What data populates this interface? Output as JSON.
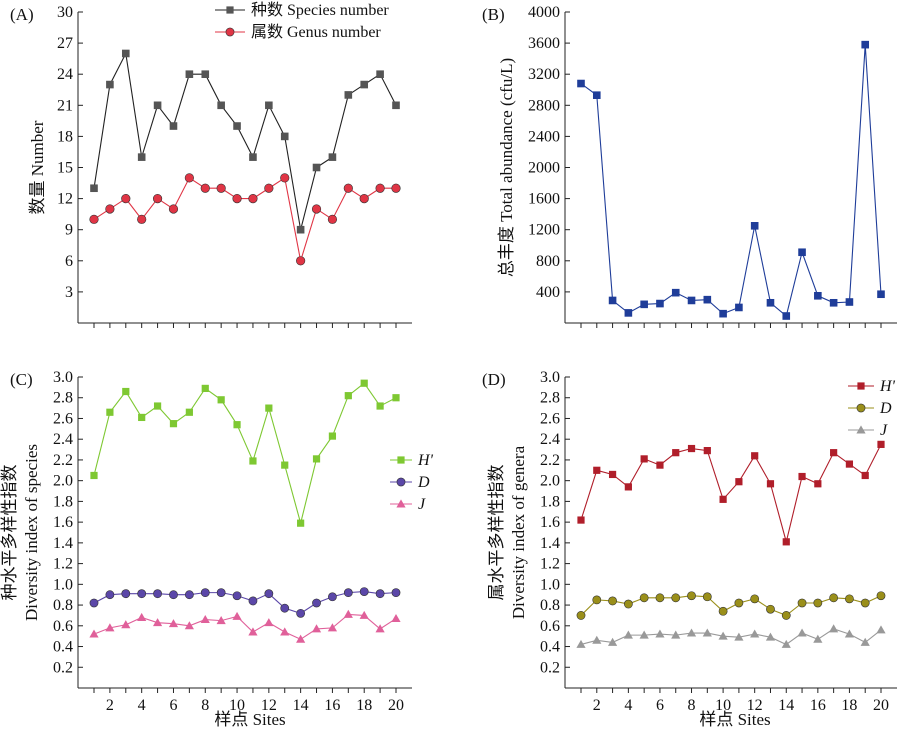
{
  "figure": {
    "x_axis_label": "样点 Sites"
  },
  "chart_data": [
    {
      "type": "line",
      "panel": "(A)",
      "ylabel": "数量 Number",
      "ylim": [
        0,
        30
      ],
      "yticks": [
        3,
        6,
        9,
        12,
        15,
        18,
        21,
        24,
        27,
        30
      ],
      "x": [
        1,
        2,
        3,
        4,
        5,
        6,
        7,
        8,
        9,
        10,
        11,
        12,
        13,
        14,
        15,
        16,
        17,
        18,
        19,
        20
      ],
      "xticks": [],
      "legend_position": "top-right",
      "series": [
        {
          "name": "种数 Species number",
          "color": "#555555",
          "line_color": "#222222",
          "marker": "square",
          "values": [
            13,
            23,
            26,
            16,
            21,
            19,
            24,
            24,
            21,
            19,
            16,
            21,
            18,
            9,
            15,
            16,
            22,
            23,
            24,
            21
          ]
        },
        {
          "name": "属数 Genus number",
          "color": "#e03545",
          "line_color": "#e03545",
          "marker": "circle",
          "values": [
            10,
            11,
            12,
            10,
            12,
            11,
            14,
            13,
            13,
            12,
            12,
            13,
            14,
            6,
            11,
            10,
            13,
            12,
            13,
            13
          ]
        }
      ]
    },
    {
      "type": "line",
      "panel": "(B)",
      "ylabel": "总丰度 Total abundance (cfu/L)",
      "ylim": [
        0,
        4000
      ],
      "yticks": [
        400,
        800,
        1200,
        1600,
        2000,
        2400,
        2800,
        3200,
        3600,
        4000
      ],
      "x": [
        1,
        2,
        3,
        4,
        5,
        6,
        7,
        8,
        9,
        10,
        11,
        12,
        13,
        14,
        15,
        16,
        17,
        18,
        19,
        20
      ],
      "xticks": [],
      "legend_position": "none",
      "series": [
        {
          "color": "#1f3d99",
          "line_color": "#1f3d99",
          "marker": "square",
          "values": [
            3080,
            2930,
            290,
            130,
            240,
            250,
            390,
            290,
            300,
            120,
            200,
            1250,
            260,
            90,
            910,
            350,
            260,
            270,
            3580,
            370
          ]
        }
      ]
    },
    {
      "type": "line",
      "panel": "(C)",
      "ylabel_cn": "种水平多样性指数",
      "ylabel_en": "Diversity index of species",
      "ylim": [
        0,
        3.0
      ],
      "yticks": [
        "0.2",
        "0.4",
        "0.6",
        "0.8",
        "1.0",
        "1.2",
        "1.4",
        "1.6",
        "1.8",
        "2.0",
        "2.2",
        "2.4",
        "2.6",
        "2.8",
        "3.0"
      ],
      "x": [
        1,
        2,
        3,
        4,
        5,
        6,
        7,
        8,
        9,
        10,
        11,
        12,
        13,
        14,
        15,
        16,
        17,
        18,
        19,
        20
      ],
      "xticks": [
        "2",
        "4",
        "6",
        "8",
        "10",
        "12",
        "14",
        "16",
        "18",
        "20"
      ],
      "legend_position": "right",
      "series": [
        {
          "name": "H'",
          "color": "#7ec832",
          "line_color": "#7ec832",
          "marker": "square",
          "values": [
            2.05,
            2.66,
            2.86,
            2.61,
            2.72,
            2.55,
            2.66,
            2.89,
            2.78,
            2.54,
            2.19,
            2.7,
            2.15,
            1.59,
            2.21,
            2.43,
            2.82,
            2.94,
            2.72,
            2.8
          ]
        },
        {
          "name": "D",
          "color": "#5b47a8",
          "line_color": "#5b47a8",
          "marker": "circle",
          "values": [
            0.82,
            0.9,
            0.91,
            0.91,
            0.91,
            0.9,
            0.9,
            0.92,
            0.92,
            0.89,
            0.84,
            0.91,
            0.77,
            0.72,
            0.82,
            0.88,
            0.92,
            0.93,
            0.91,
            0.92
          ]
        },
        {
          "name": "J",
          "color": "#e0609a",
          "line_color": "#e0609a",
          "marker": "triangle",
          "values": [
            0.52,
            0.58,
            0.61,
            0.68,
            0.63,
            0.62,
            0.6,
            0.66,
            0.65,
            0.69,
            0.54,
            0.63,
            0.54,
            0.47,
            0.57,
            0.58,
            0.71,
            0.7,
            0.57,
            0.67
          ]
        }
      ]
    },
    {
      "type": "line",
      "panel": "(D)",
      "ylabel_cn": "属水平多样性指数",
      "ylabel_en": "Diversity index of genera",
      "ylim": [
        0,
        3.0
      ],
      "yticks": [
        "0.2",
        "0.4",
        "0.6",
        "0.8",
        "1.0",
        "1.2",
        "1.4",
        "1.6",
        "1.8",
        "2.0",
        "2.2",
        "2.4",
        "2.6",
        "2.8",
        "3.0"
      ],
      "x": [
        1,
        2,
        3,
        4,
        5,
        6,
        7,
        8,
        9,
        10,
        11,
        12,
        13,
        14,
        15,
        16,
        17,
        18,
        19,
        20
      ],
      "xticks": [
        "2",
        "4",
        "6",
        "8",
        "10",
        "12",
        "14",
        "16",
        "18",
        "20"
      ],
      "legend_position": "top-right",
      "series": [
        {
          "name": "H'",
          "color": "#b01e2a",
          "line_color": "#b01e2a",
          "marker": "square",
          "values": [
            1.62,
            2.1,
            2.06,
            1.94,
            2.21,
            2.15,
            2.27,
            2.31,
            2.29,
            1.82,
            1.99,
            2.24,
            1.97,
            1.41,
            2.04,
            1.97,
            2.27,
            2.16,
            2.05,
            2.35
          ]
        },
        {
          "name": "D",
          "color": "#9a8f1a",
          "line_color": "#9a8f1a",
          "marker": "circle",
          "values": [
            0.7,
            0.85,
            0.84,
            0.81,
            0.87,
            0.87,
            0.87,
            0.89,
            0.88,
            0.74,
            0.82,
            0.86,
            0.76,
            0.7,
            0.82,
            0.82,
            0.87,
            0.86,
            0.82,
            0.89
          ]
        },
        {
          "name": "J",
          "color": "#999999",
          "line_color": "#999999",
          "marker": "triangle",
          "values": [
            0.42,
            0.46,
            0.44,
            0.51,
            0.51,
            0.52,
            0.51,
            0.53,
            0.53,
            0.5,
            0.49,
            0.52,
            0.49,
            0.42,
            0.53,
            0.47,
            0.57,
            0.52,
            0.44,
            0.56
          ]
        }
      ]
    }
  ]
}
